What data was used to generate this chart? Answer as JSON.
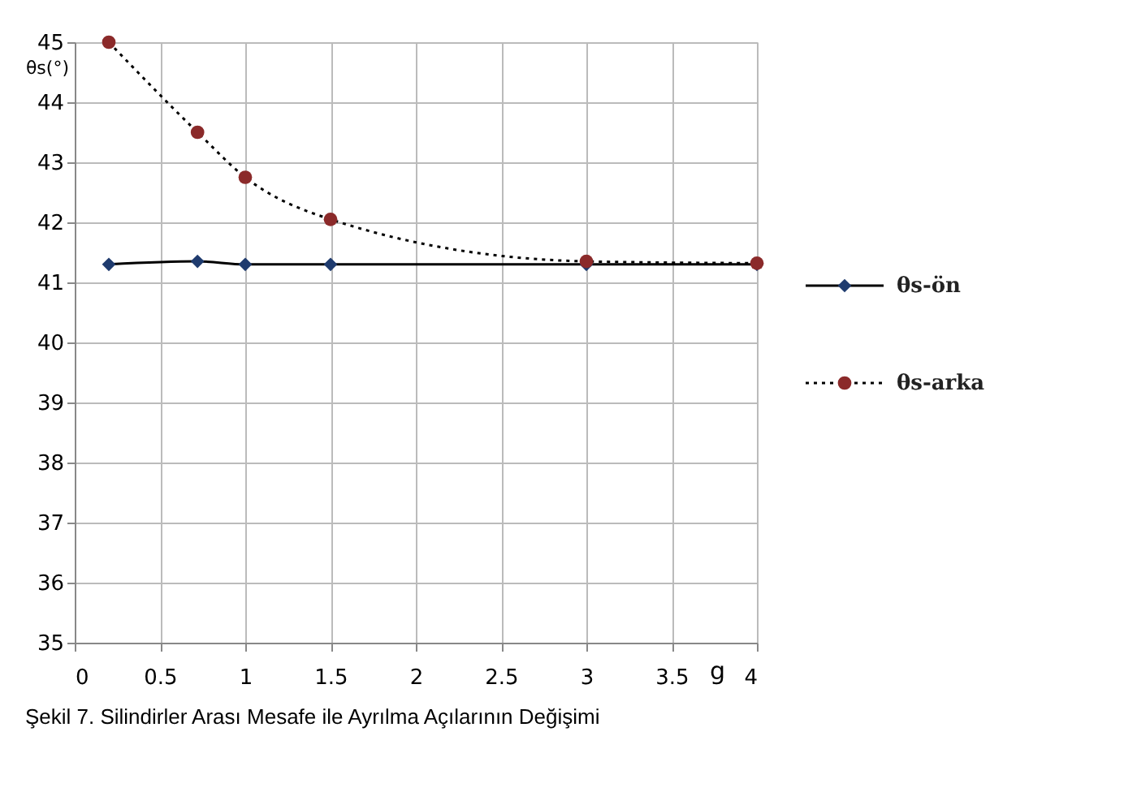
{
  "chart_data": {
    "type": "line",
    "xlabel": "g",
    "ylabel": "θs(°)",
    "xlim": [
      0,
      4
    ],
    "xticks": [
      0,
      0.5,
      1,
      1.5,
      2,
      2.5,
      3,
      3.5,
      4
    ],
    "ylim": [
      35,
      45
    ],
    "yticks": [
      35,
      36,
      37,
      38,
      39,
      40,
      41,
      42,
      43,
      44,
      45
    ],
    "grid": true,
    "legend": "right",
    "annotations": [
      "Şekil 7. Silindirler Arası Mesafe ile Ayrılma Açılarının Değişimi"
    ],
    "series": [
      {
        "name": "θs-ön",
        "color": "#1f3b6e",
        "marker": "diamond",
        "line_style": "solid",
        "x": [
          0.2,
          0.72,
          1,
          1.5,
          3,
          4
        ],
        "values": [
          41.3,
          41.35,
          41.3,
          41.3,
          41.3,
          41.3
        ]
      },
      {
        "name": "θs-arka",
        "color": "#8b2a2a",
        "marker": "circle",
        "line_style": "dotted",
        "x": [
          0.2,
          0.72,
          1,
          1.5,
          3,
          4
        ],
        "values": [
          45,
          43.5,
          42.75,
          42.05,
          41.35,
          41.32
        ]
      }
    ]
  }
}
